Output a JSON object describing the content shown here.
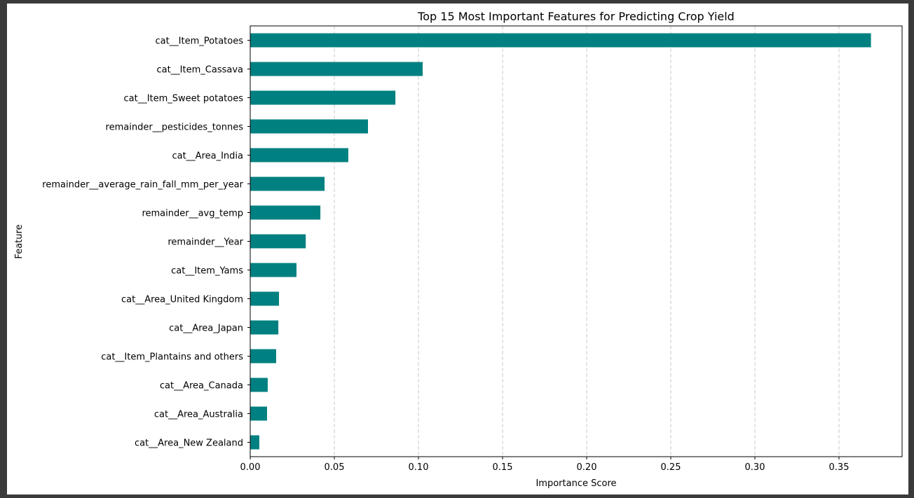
{
  "chart_data": {
    "type": "bar",
    "orientation": "horizontal",
    "title": "Top 15 Most Important Features for Predicting Crop Yield",
    "xlabel": "Importance Score",
    "ylabel": "Feature",
    "xlim": [
      0,
      0.3875
    ],
    "xticks": [
      "0.00",
      "0.05",
      "0.10",
      "0.15",
      "0.20",
      "0.25",
      "0.30",
      "0.35"
    ],
    "grid": "x-dashed",
    "bar_color": "#008080",
    "categories": [
      "cat__Item_Potatoes",
      "cat__Item_Cassava",
      "cat__Item_Sweet potatoes",
      "remainder__pesticides_tonnes",
      "cat__Area_India",
      "remainder__average_rain_fall_mm_per_year",
      "remainder__avg_temp",
      "remainder__Year",
      "cat__Item_Yams",
      "cat__Area_United Kingdom",
      "cat__Area_Japan",
      "cat__Item_Plantains and others",
      "cat__Area_Canada",
      "cat__Area_Australia",
      "cat__Area_New Zealand"
    ],
    "values": [
      0.369,
      0.1025,
      0.0863,
      0.07,
      0.0583,
      0.0442,
      0.0417,
      0.033,
      0.0275,
      0.0171,
      0.0167,
      0.0154,
      0.0104,
      0.01,
      0.0054
    ]
  }
}
